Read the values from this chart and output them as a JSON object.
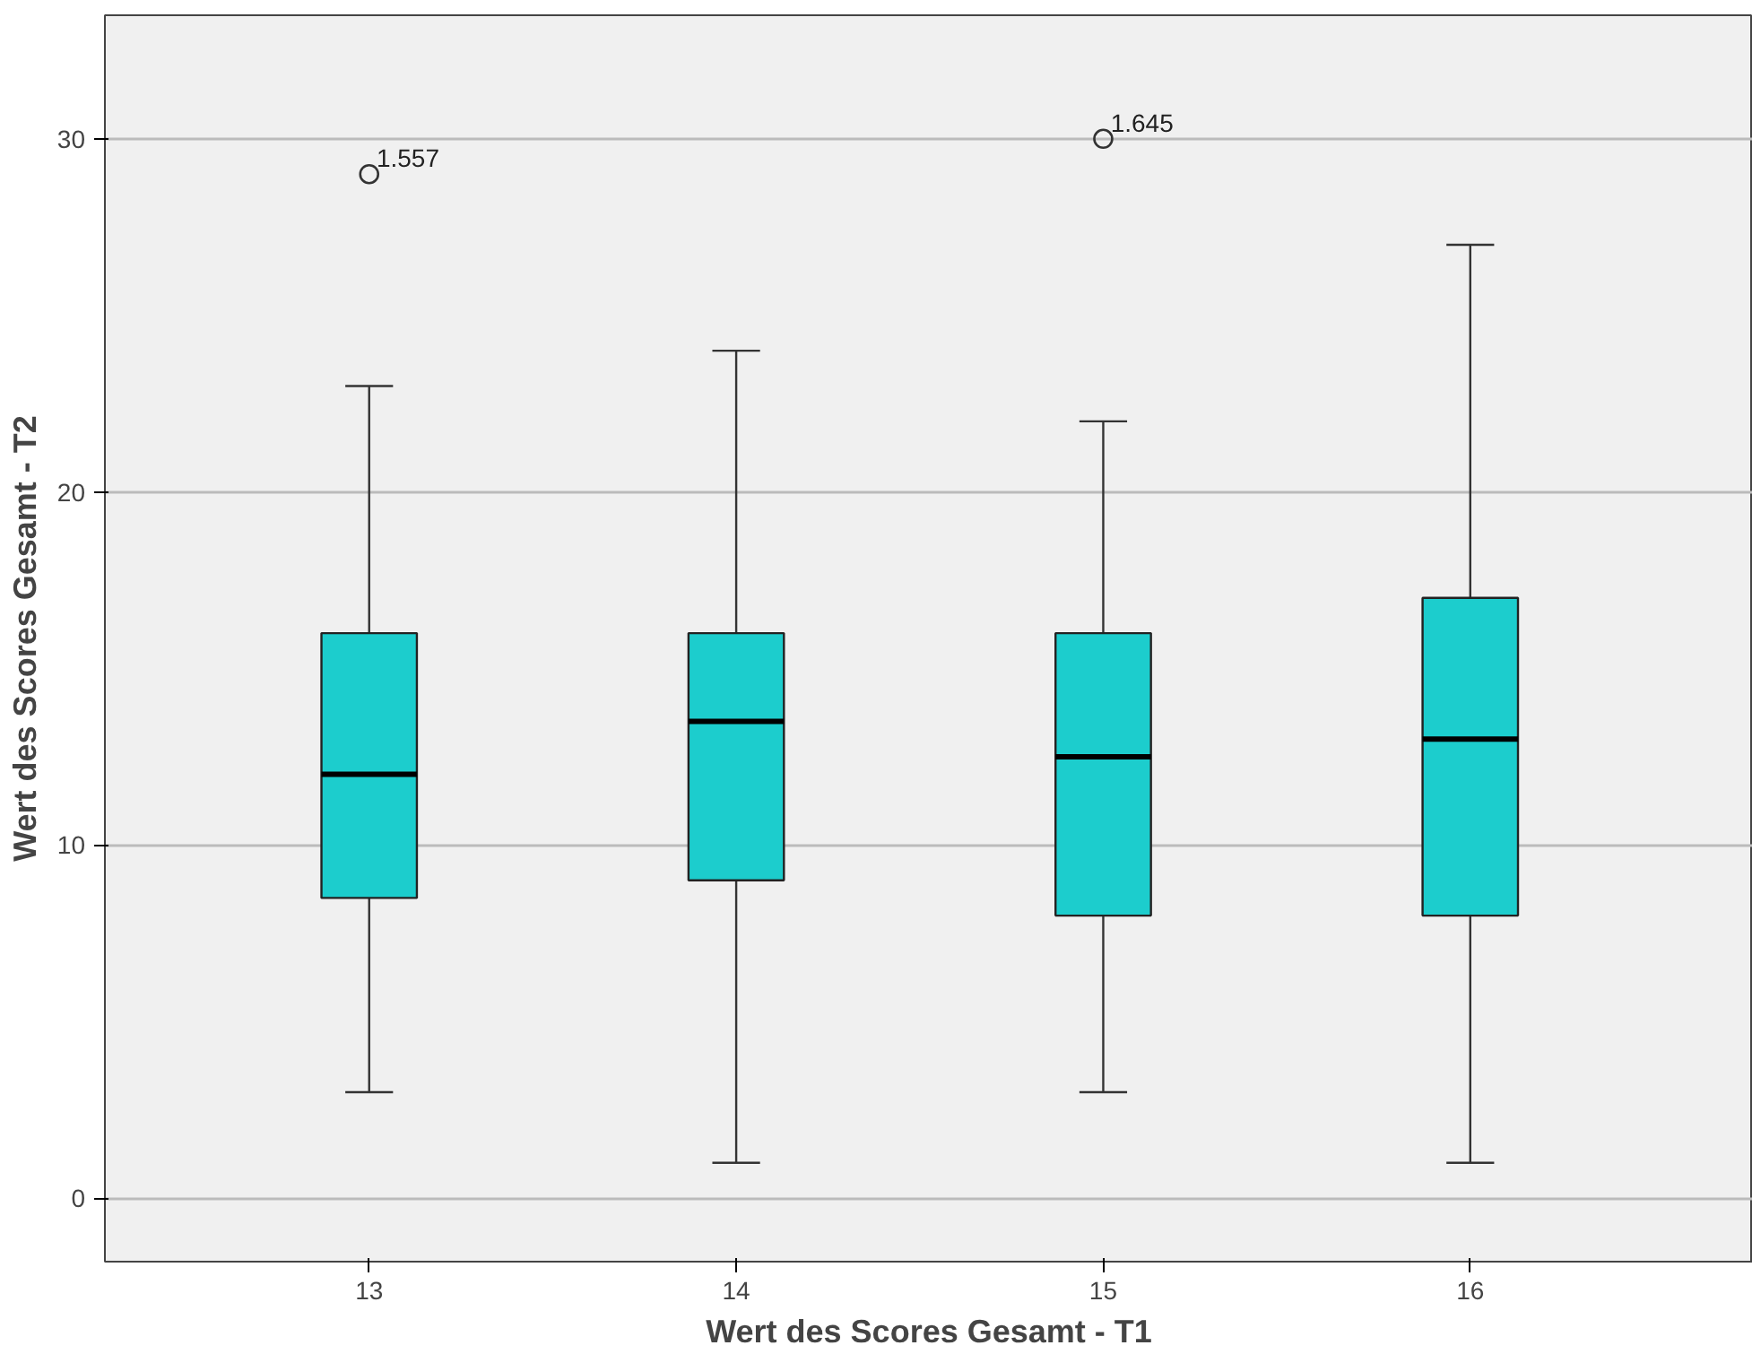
{
  "chart_data": {
    "type": "box",
    "xlabel": "Wert des Scores Gesamt - T1",
    "ylabel": "Wert des Scores Gesamt - T2",
    "categories": [
      "13",
      "14",
      "15",
      "16"
    ],
    "boxes": [
      {
        "low": 3,
        "q1": 8.5,
        "median": 12,
        "q3": 16,
        "high": 23,
        "outliers": [
          29
        ]
      },
      {
        "low": 1,
        "q1": 9,
        "median": 13.5,
        "q3": 16,
        "high": 24
      },
      {
        "low": 3,
        "q1": 8,
        "median": 12.5,
        "q3": 16,
        "high": 22,
        "outliers": [
          30
        ]
      },
      {
        "low": 1,
        "q1": 8,
        "median": 13,
        "q3": 17,
        "high": 27
      }
    ],
    "color": "#1ccdcd",
    "ylim": [
      -1.8,
      33.5
    ],
    "yticks": [
      0,
      10,
      20,
      30
    ],
    "grid": "y",
    "marker": "circle",
    "annotations": [
      "1.557",
      "1.645"
    ]
  }
}
